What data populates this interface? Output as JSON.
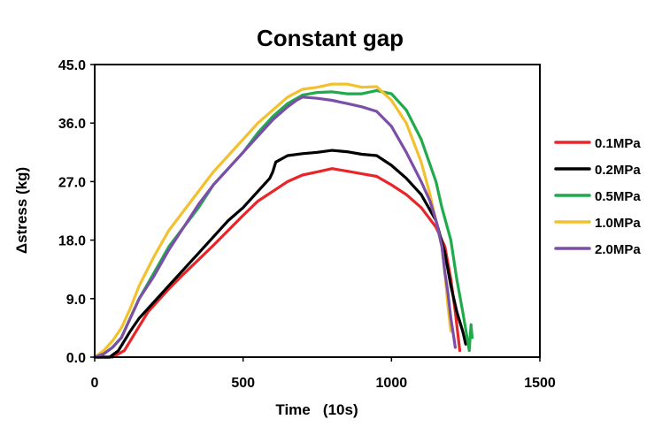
{
  "chart_data": {
    "type": "line",
    "title": "Constant gap",
    "xlabel": "Time   (10s)",
    "ylabel": "Δstress (kg)",
    "xlim": [
      0,
      1500
    ],
    "ylim": [
      0,
      45
    ],
    "x_ticks": [
      "0",
      "500",
      "1000",
      "1500"
    ],
    "y_ticks": [
      "0.0",
      "9.0",
      "18.0",
      "27.0",
      "36.0",
      "45.0"
    ],
    "legend_position": "right",
    "series": [
      {
        "name": "0.1MPa",
        "color": "#e8262a",
        "x": [
          0,
          60,
          80,
          100,
          120,
          140,
          160,
          180,
          200,
          250,
          300,
          350,
          400,
          450,
          500,
          550,
          600,
          650,
          700,
          750,
          800,
          850,
          900,
          950,
          1000,
          1050,
          1100,
          1150,
          1180,
          1200,
          1215,
          1225,
          1230
        ],
        "y": [
          0,
          0,
          0.5,
          1,
          2.5,
          4,
          5.5,
          7,
          8,
          10.5,
          12.8,
          15,
          17.2,
          19.5,
          21.8,
          24,
          25.5,
          27,
          28,
          28.5,
          29,
          28.6,
          28.2,
          27.8,
          26.5,
          25,
          23,
          20,
          17,
          12,
          7,
          3,
          1
        ]
      },
      {
        "name": "0.2MPa",
        "color": "#000000",
        "x": [
          0,
          50,
          80,
          100,
          120,
          150,
          200,
          250,
          300,
          350,
          400,
          450,
          500,
          550,
          590,
          600,
          610,
          650,
          700,
          750,
          800,
          850,
          900,
          950,
          1000,
          1050,
          1100,
          1150,
          1180,
          1200,
          1220,
          1240,
          1250
        ],
        "y": [
          0,
          0,
          1,
          2.5,
          4,
          6,
          8.5,
          11,
          13.5,
          16,
          18.5,
          21,
          23,
          25.5,
          27.5,
          28.5,
          30,
          31,
          31.3,
          31.5,
          31.8,
          31.6,
          31.2,
          31,
          29.5,
          27.5,
          25,
          21,
          16,
          11,
          7,
          4,
          2
        ]
      },
      {
        "name": "0.5MPa",
        "color": "#1faa4c",
        "x": [
          0,
          30,
          60,
          90,
          120,
          150,
          200,
          250,
          300,
          350,
          400,
          450,
          500,
          550,
          600,
          650,
          700,
          750,
          800,
          850,
          900,
          950,
          1000,
          1050,
          1100,
          1150,
          1170,
          1200,
          1220,
          1240,
          1255,
          1262,
          1268,
          1272
        ],
        "y": [
          0,
          0.5,
          1.5,
          3,
          6,
          9,
          13,
          17,
          20,
          23,
          26.5,
          29,
          31.5,
          34.5,
          37,
          39,
          40.3,
          40.7,
          40.8,
          40.5,
          40.5,
          41,
          40.5,
          38,
          33.5,
          27,
          23,
          18,
          12,
          7,
          3,
          1,
          5,
          3
        ]
      },
      {
        "name": "1.0MPa",
        "color": "#f2c12e",
        "x": [
          0,
          30,
          60,
          90,
          120,
          150,
          200,
          250,
          300,
          350,
          400,
          450,
          500,
          550,
          600,
          650,
          700,
          750,
          800,
          850,
          900,
          950,
          1000,
          1050,
          1100,
          1130,
          1150,
          1170,
          1180,
          1190,
          1200
        ],
        "y": [
          0,
          1,
          2.5,
          4.5,
          7.5,
          11,
          15.5,
          19.5,
          22.5,
          25.5,
          28.5,
          31,
          33.5,
          36,
          38,
          40,
          41.2,
          41.5,
          42,
          42,
          41.5,
          41.6,
          39.5,
          36,
          30,
          25,
          21,
          17,
          13,
          8,
          4
        ]
      },
      {
        "name": "2.0MPa",
        "color": "#7b4fa8",
        "x": [
          0,
          30,
          60,
          90,
          120,
          150,
          200,
          250,
          300,
          350,
          400,
          450,
          500,
          550,
          600,
          650,
          680,
          700,
          750,
          800,
          850,
          900,
          950,
          1000,
          1050,
          1100,
          1130,
          1150,
          1170,
          1180,
          1190,
          1200,
          1210,
          1215
        ],
        "y": [
          0,
          0.5,
          1.5,
          3,
          6,
          9,
          12.5,
          16.5,
          20,
          23.5,
          26.5,
          29,
          31.5,
          34,
          36.5,
          38.5,
          39.5,
          40,
          39.8,
          39.5,
          39,
          38.5,
          37.8,
          35.5,
          31.5,
          27,
          24,
          21,
          17,
          13,
          10,
          6,
          3,
          1.5
        ]
      }
    ]
  }
}
